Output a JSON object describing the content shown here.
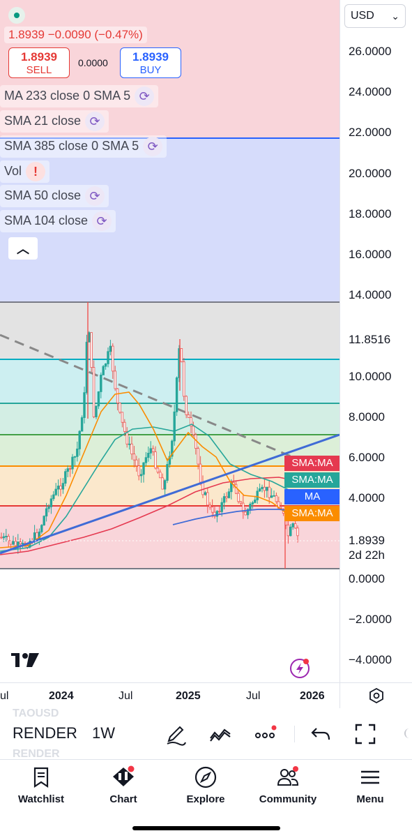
{
  "legend": {
    "price_line": "1.8939 −0.0090 (−0.47%)",
    "sell_price": "1.8939",
    "sell_label": "SELL",
    "spread": "0.0000",
    "buy_price": "1.8939",
    "buy_label": "BUY",
    "indicators": [
      {
        "label": "MA 233 close 0 SMA 5",
        "icon": "refresh-icon"
      },
      {
        "label": "SMA 21 close",
        "icon": "refresh-icon"
      },
      {
        "label": "SMA 385 close 0 SMA 5",
        "icon": "refresh-icon"
      },
      {
        "label": "Vol",
        "icon": "alert-icon"
      },
      {
        "label": "SMA 50 close",
        "icon": "refresh-icon"
      },
      {
        "label": "SMA 104 close",
        "icon": "refresh-icon"
      }
    ],
    "collapse_icon": "chevron-up-icon"
  },
  "price_axis": {
    "currency": "USD",
    "ticks": [
      "26.0000",
      "24.0000",
      "22.0000",
      "20.0000",
      "18.0000",
      "16.0000",
      "14.0000",
      "11.8516",
      "10.0000",
      "8.0000",
      "6.0000",
      "4.0000",
      "1.8939",
      "0.0000",
      "−2.0000",
      "−4.0000"
    ],
    "last_price": "1.8939",
    "countdown": "2d 22h"
  },
  "tags": [
    {
      "label": "SMA:MA",
      "color": "#e53950"
    },
    {
      "label": "SMA:MA",
      "color": "#26a69a"
    },
    {
      "label": "MA",
      "color": "#2962ff"
    },
    {
      "label": "SMA:MA",
      "color": "#fb8c00"
    }
  ],
  "time_axis": [
    "ul",
    "2024",
    "Jul",
    "2025",
    "Jul",
    "2026"
  ],
  "toolbar": {
    "symbol": "RENDER",
    "symbol_ghost_above": "TAOUSD",
    "symbol_ghost_below": "RENDER",
    "interval": "1W"
  },
  "nav": [
    {
      "label": "Watchlist",
      "icon": "bookmark-icon"
    },
    {
      "label": "Chart",
      "icon": "candles-icon"
    },
    {
      "label": "Explore",
      "icon": "compass-icon"
    },
    {
      "label": "Community",
      "icon": "people-icon"
    },
    {
      "label": "Menu",
      "icon": "hamburger-icon"
    }
  ],
  "colors": {
    "up": "#26a69a",
    "down": "#ef5350",
    "accent": "#2962ff",
    "sma21": "#fb8c00",
    "sma50": "#26a69a",
    "sma104": "#e53950",
    "trendline": "#3f6bd6"
  }
}
